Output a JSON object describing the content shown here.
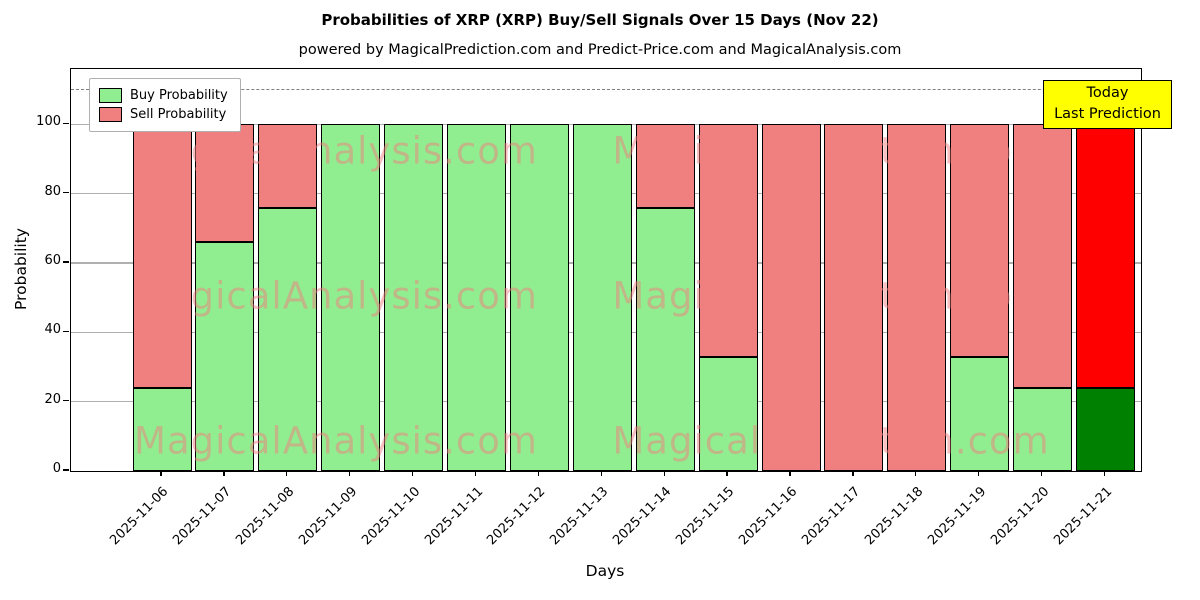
{
  "title": "Probabilities of XRP (XRP) Buy/Sell Signals Over 15 Days (Nov 22)",
  "subtitle": "powered by MagicalPrediction.com and Predict-Price.com and MagicalAnalysis.com",
  "legend": {
    "buy_label": "Buy Probability",
    "sell_label": "Sell Probability"
  },
  "annotation_box": {
    "line1": "Today",
    "line2": "Last Prediction"
  },
  "watermarks": {
    "left_text": "MagicalAnalysis.com",
    "right_text": "MagicalPrediction.com"
  },
  "axes": {
    "xlabel": "Days",
    "ylabel": "Probability",
    "yticks": [
      0,
      20,
      40,
      60,
      80,
      100
    ]
  },
  "colors": {
    "buy": "#90ee90",
    "sell": "#f08080",
    "last_buy": "#008000",
    "last_sell": "#ff0000",
    "bar_edge": "#000000",
    "grid": "#b0b0b0",
    "dashed_line": "#7f7f7f",
    "annotation_bg": "#ffff00",
    "watermark": "#f08080"
  },
  "chart_data": {
    "type": "bar",
    "stacked": true,
    "title": "Probabilities of XRP (XRP) Buy/Sell Signals Over 15 Days (Nov 22)",
    "xlabel": "Days",
    "ylabel": "Probability",
    "ylim": [
      0,
      116
    ],
    "dashed_line_y": 110,
    "grid": true,
    "legend_position": "upper left",
    "highlight_last_bar": true,
    "categories": [
      "2025-11-06",
      "2025-11-07",
      "2025-11-08",
      "2025-11-09",
      "2025-11-10",
      "2025-11-11",
      "2025-11-12",
      "2025-11-13",
      "2025-11-14",
      "2025-11-15",
      "2025-11-16",
      "2025-11-17",
      "2025-11-18",
      "2025-11-19",
      "2025-11-20",
      "2025-11-21"
    ],
    "series": [
      {
        "name": "Buy Probability",
        "values": [
          24,
          66,
          76,
          100,
          100,
          100,
          100,
          100,
          76,
          33,
          0,
          0,
          0,
          33,
          24,
          24
        ]
      },
      {
        "name": "Sell Probability",
        "values": [
          76,
          34,
          24,
          0,
          0,
          0,
          0,
          0,
          24,
          67,
          100,
          100,
          100,
          67,
          76,
          76
        ]
      }
    ]
  }
}
